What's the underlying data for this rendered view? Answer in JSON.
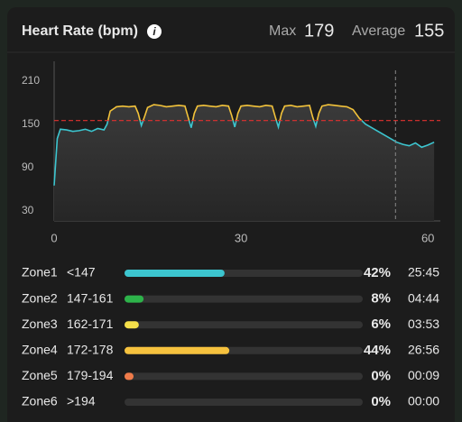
{
  "header": {
    "title": "Heart Rate (bpm)",
    "max_label": "Max",
    "max_value": "179",
    "avg_label": "Average",
    "avg_value": "155"
  },
  "chart_data": {
    "type": "line",
    "x": [
      0,
      0.5,
      1,
      2,
      3,
      4,
      5,
      6,
      7,
      8,
      8.5,
      9,
      10,
      11,
      12,
      13,
      13.5,
      14,
      14.5,
      15,
      16,
      17,
      18,
      19,
      20,
      21,
      21.5,
      22,
      22.5,
      23,
      24,
      25,
      26,
      27,
      28,
      28.5,
      29,
      29.5,
      30,
      31,
      32,
      33,
      34,
      35,
      35.5,
      36,
      36.5,
      37,
      38,
      39,
      40,
      41,
      41.5,
      42,
      42.5,
      43,
      44,
      45,
      46,
      47,
      48,
      49,
      50,
      51,
      52,
      53,
      54,
      55,
      56,
      57,
      58,
      59,
      60,
      61
    ],
    "series": [
      {
        "color": "#3cc5cf",
        "color_above": "#f2c23a",
        "values": [
          65,
          130,
          143,
          142,
          140,
          141,
          143,
          140,
          144,
          142,
          150,
          168,
          174,
          175,
          174,
          175,
          165,
          148,
          160,
          173,
          177,
          176,
          174,
          175,
          176,
          175,
          160,
          145,
          165,
          175,
          176,
          175,
          174,
          176,
          175,
          162,
          146,
          165,
          175,
          176,
          175,
          174,
          176,
          175,
          160,
          146,
          165,
          175,
          176,
          174,
          175,
          176,
          160,
          147,
          165,
          175,
          177,
          176,
          175,
          174,
          170,
          158,
          150,
          145,
          140,
          135,
          130,
          125,
          122,
          120,
          124,
          118,
          121,
          125
        ]
      }
    ],
    "reference_line": {
      "value": 155,
      "color": "#e0302e"
    },
    "cursor_x": 54.8,
    "xlim": [
      0,
      62
    ],
    "xticks": [
      0,
      30,
      60
    ],
    "ylim": [
      16,
      237
    ],
    "yticks": [
      210,
      150,
      90,
      30
    ]
  },
  "zones": [
    {
      "name": "Zone1",
      "range": "<147",
      "color": "#3cc5cf",
      "percent": 42,
      "percent_label": "42%",
      "time": "25:45"
    },
    {
      "name": "Zone2",
      "range": "147-161",
      "color": "#2db34a",
      "percent": 8,
      "percent_label": "8%",
      "time": "04:44"
    },
    {
      "name": "Zone3",
      "range": "162-171",
      "color": "#f5e04a",
      "percent": 6,
      "percent_label": "6%",
      "time": "03:53"
    },
    {
      "name": "Zone4",
      "range": "172-178",
      "color": "#f6c23e",
      "percent": 44,
      "percent_label": "44%",
      "time": "26:56"
    },
    {
      "name": "Zone5",
      "range": "179-194",
      "color": "#ef7b4a",
      "percent": 0,
      "percent_label": "0%",
      "time": "00:09"
    },
    {
      "name": "Zone6",
      "range": ">194",
      "percent": 0,
      "percent_label": "0%",
      "time": "00:00"
    }
  ]
}
